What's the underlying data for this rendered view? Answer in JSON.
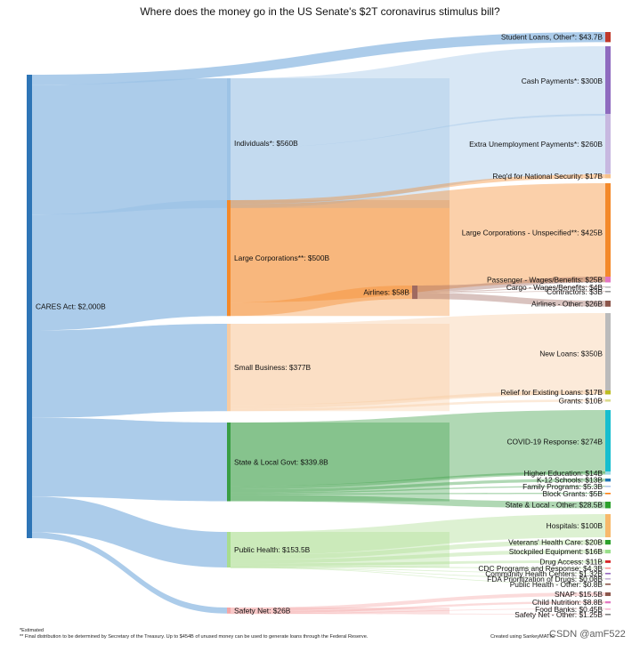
{
  "title": "Where does the money go in the US Senate's $2T coronavirus stimulus bill?",
  "footnotes": {
    "estimated": "*Estimated",
    "final": "** Final distribution to be determined by Secretary of the Treasury. Up to $454B of unused money can be used to generate loans through the Federal Reserve."
  },
  "credit": "Created using SankeyMATIC",
  "watermark": "CSDN @amF522",
  "chart_data": {
    "type": "sankey",
    "title": "Where does the money go in the US Senate's $2T coronavirus stimulus bill?",
    "unit": "$B",
    "total_label": "CARES Act: $2,000B",
    "nodes": [
      {
        "id": "cares",
        "label": "CARES Act: $2,000B",
        "value": 2000,
        "column": 0,
        "color": "#2e75b6"
      },
      {
        "id": "individuals",
        "label": "Individuals*: $560B",
        "value": 560,
        "column": 1,
        "color": "#9dc3e6"
      },
      {
        "id": "large",
        "label": "Large Corporations**: $500B",
        "value": 500,
        "column": 1,
        "color": "#f4892a"
      },
      {
        "id": "small",
        "label": "Small Business: $377B",
        "value": 377,
        "column": 1,
        "color": "#f8cba0"
      },
      {
        "id": "state",
        "label": "State & Local Govt: $339.8B",
        "value": 339.8,
        "column": 1,
        "color": "#3a9e44"
      },
      {
        "id": "health",
        "label": "Public Health: $153.5B",
        "value": 153.5,
        "column": 1,
        "color": "#a9dd8f"
      },
      {
        "id": "safety",
        "label": "Safety Net: $26B",
        "value": 26,
        "column": 1,
        "color": "#f4a6a6"
      },
      {
        "id": "airlines",
        "label": "Airlines: $58B",
        "value": 58,
        "column": 2,
        "color": "#a06a60"
      },
      {
        "id": "studentloans",
        "label": "Student Loans, Other*: $43.7B",
        "value": 43.7,
        "column": 3,
        "color": "#c0392b"
      },
      {
        "id": "cash",
        "label": "Cash Payments*: $300B",
        "value": 300,
        "column": 3,
        "color": "#8e6bbf"
      },
      {
        "id": "unemp",
        "label": "Extra Unemployment Payments*: $260B",
        "value": 260,
        "column": 3,
        "color": "#c7b8e0"
      },
      {
        "id": "natsec",
        "label": "Req'd for National Security: $17B",
        "value": 17,
        "column": 3,
        "color": "#f6c18a"
      },
      {
        "id": "largeunspec",
        "label": "Large Corporations - Unspecified**: $425B",
        "value": 425,
        "column": 3,
        "color": "#f4892a"
      },
      {
        "id": "passenger",
        "label": "Passenger - Wages/Benefits: $25B",
        "value": 25,
        "column": 3,
        "color": "#e377c2"
      },
      {
        "id": "cargo",
        "label": "Cargo - Wages/Benefits: $4B",
        "value": 4,
        "column": 3,
        "color": "#bbbbbb"
      },
      {
        "id": "contractors",
        "label": "Contractors: $3B",
        "value": 3,
        "column": 3,
        "color": "#999999"
      },
      {
        "id": "airlinesother",
        "label": "Airlines - Other: $26B",
        "value": 26,
        "column": 3,
        "color": "#8c564b"
      },
      {
        "id": "newloans",
        "label": "New Loans: $350B",
        "value": 350,
        "column": 3,
        "color": "#bbbbbb"
      },
      {
        "id": "relief",
        "label": "Relief for Existing Loans: $17B",
        "value": 17,
        "column": 3,
        "color": "#bcbd22"
      },
      {
        "id": "grants",
        "label": "Grants: $10B",
        "value": 10,
        "column": 3,
        "color": "#dbdb8d"
      },
      {
        "id": "covid",
        "label": "COVID-19 Response: $274B",
        "value": 274,
        "column": 3,
        "color": "#17becf"
      },
      {
        "id": "highered",
        "label": "Higher Education: $14B",
        "value": 14,
        "column": 3,
        "color": "#9edae5"
      },
      {
        "id": "k12",
        "label": "K-12 Schools: $13B",
        "value": 13,
        "column": 3,
        "color": "#1f77b4"
      },
      {
        "id": "family",
        "label": "Family Programs: $5.3B",
        "value": 5.3,
        "column": 3,
        "color": "#aec7e8"
      },
      {
        "id": "block",
        "label": "Block Grants: $5B",
        "value": 5,
        "column": 3,
        "color": "#ff7f0e"
      },
      {
        "id": "stateother",
        "label": "State & Local - Other: $28.5B",
        "value": 28.5,
        "column": 3,
        "color": "#2ca02c"
      },
      {
        "id": "hospitals",
        "label": "Hospitals: $100B",
        "value": 100,
        "column": 3,
        "color": "#f7b96b"
      },
      {
        "id": "veterans",
        "label": "Veterans' Health Care: $20B",
        "value": 20,
        "column": 3,
        "color": "#2ca02c"
      },
      {
        "id": "stockpiled",
        "label": "Stockpiled Equipment: $16B",
        "value": 16,
        "column": 3,
        "color": "#98df8a"
      },
      {
        "id": "drug",
        "label": "Drug Access: $11B",
        "value": 11,
        "column": 3,
        "color": "#d62728"
      },
      {
        "id": "cdc",
        "label": "CDC Programs and Response: $4.3B",
        "value": 4.3,
        "column": 3,
        "color": "#ff9896"
      },
      {
        "id": "chc",
        "label": "Community Health Centers: $1.32B",
        "value": 1.32,
        "column": 3,
        "color": "#9467bd"
      },
      {
        "id": "fda",
        "label": "FDA Prioritization of Drugs: $0.08B",
        "value": 0.08,
        "column": 3,
        "color": "#c5b0d5"
      },
      {
        "id": "phother",
        "label": "Public Health - Other: $0.8B",
        "value": 0.8,
        "column": 3,
        "color": "#8c564b"
      },
      {
        "id": "snap",
        "label": "SNAP: $15.5B",
        "value": 15.5,
        "column": 3,
        "color": "#8c564b"
      },
      {
        "id": "childnut",
        "label": "Child Nutrition: $8.8B",
        "value": 8.8,
        "column": 3,
        "color": "#e377c2"
      },
      {
        "id": "foodbanks",
        "label": "Food Banks: $0.45B",
        "value": 0.45,
        "column": 3,
        "color": "#f7b6d2"
      },
      {
        "id": "safetyother",
        "label": "Safety Net - Other: $1.25B",
        "value": 1.25,
        "column": 3,
        "color": "#7f7f7f"
      }
    ],
    "links": [
      {
        "source": "cares",
        "target": "studentloans",
        "value": 43.7
      },
      {
        "source": "cares",
        "target": "individuals",
        "value": 560
      },
      {
        "source": "cares",
        "target": "large",
        "value": 500
      },
      {
        "source": "cares",
        "target": "small",
        "value": 377
      },
      {
        "source": "cares",
        "target": "state",
        "value": 339.8
      },
      {
        "source": "cares",
        "target": "health",
        "value": 153.5
      },
      {
        "source": "cares",
        "target": "safety",
        "value": 26
      },
      {
        "source": "individuals",
        "target": "cash",
        "value": 300
      },
      {
        "source": "individuals",
        "target": "unemp",
        "value": 260
      },
      {
        "source": "large",
        "target": "natsec",
        "value": 17
      },
      {
        "source": "large",
        "target": "largeunspec",
        "value": 425
      },
      {
        "source": "large",
        "target": "airlines",
        "value": 58
      },
      {
        "source": "airlines",
        "target": "passenger",
        "value": 25
      },
      {
        "source": "airlines",
        "target": "cargo",
        "value": 4
      },
      {
        "source": "airlines",
        "target": "contractors",
        "value": 3
      },
      {
        "source": "airlines",
        "target": "airlinesother",
        "value": 26
      },
      {
        "source": "small",
        "target": "newloans",
        "value": 350
      },
      {
        "source": "small",
        "target": "relief",
        "value": 17
      },
      {
        "source": "small",
        "target": "grants",
        "value": 10
      },
      {
        "source": "state",
        "target": "covid",
        "value": 274
      },
      {
        "source": "state",
        "target": "highered",
        "value": 14
      },
      {
        "source": "state",
        "target": "k12",
        "value": 13
      },
      {
        "source": "state",
        "target": "family",
        "value": 5.3
      },
      {
        "source": "state",
        "target": "block",
        "value": 5
      },
      {
        "source": "state",
        "target": "stateother",
        "value": 28.5
      },
      {
        "source": "health",
        "target": "hospitals",
        "value": 100
      },
      {
        "source": "health",
        "target": "veterans",
        "value": 20
      },
      {
        "source": "health",
        "target": "stockpiled",
        "value": 16
      },
      {
        "source": "health",
        "target": "drug",
        "value": 11
      },
      {
        "source": "health",
        "target": "cdc",
        "value": 4.3
      },
      {
        "source": "health",
        "target": "chc",
        "value": 1.32
      },
      {
        "source": "health",
        "target": "fda",
        "value": 0.08
      },
      {
        "source": "health",
        "target": "phother",
        "value": 0.8
      },
      {
        "source": "safety",
        "target": "snap",
        "value": 15.5
      },
      {
        "source": "safety",
        "target": "childnut",
        "value": 8.8
      },
      {
        "source": "safety",
        "target": "foodbanks",
        "value": 0.45
      },
      {
        "source": "safety",
        "target": "safetyother",
        "value": 1.25
      }
    ]
  }
}
